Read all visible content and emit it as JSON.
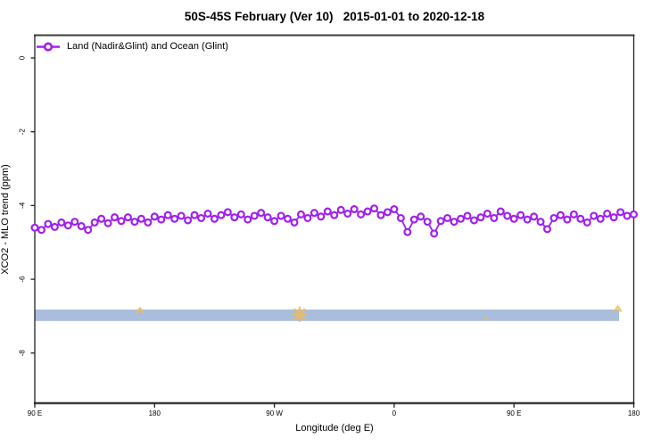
{
  "title": "50S-45S February (Ver 10)   2015-01-01 to 2020-12-18",
  "legend": {
    "label": "Land (Nadir&Glint) and Ocean (Glint)",
    "marker": "open-circle-on-line",
    "color": "#a020f0"
  },
  "axes": {
    "x": {
      "label": "Longitude (deg E)",
      "tick_values": [
        90,
        180,
        270,
        360,
        450,
        540
      ],
      "tick_labels": [
        "90 E",
        "180",
        "90 W",
        "0",
        "90 E",
        "180"
      ]
    },
    "y": {
      "label": "XCO2 - MLO trend (ppm)",
      "tick_values": [
        0,
        -2,
        -4,
        -6,
        -8
      ],
      "tick_labels": [
        "0",
        "-2",
        "-4",
        "-6",
        "-8"
      ]
    }
  },
  "colors": {
    "series": "#a020f0",
    "band": "#a8bedc",
    "flags": "#f0bb5e",
    "axis": "#333333"
  },
  "chart_data": {
    "type": "line",
    "title": "50S-45S February (Ver 10)   2015-01-01 to 2020-12-18",
    "xlabel": "Longitude (deg E)",
    "ylabel": "XCO2 - MLO trend (ppm)",
    "xlim": [
      90,
      540
    ],
    "ylim": [
      -9.35,
      0.6
    ],
    "grid": false,
    "legend_position": "top-left",
    "x": [
      90,
      95,
      100,
      105,
      110,
      115,
      120,
      125,
      130,
      135,
      140,
      145,
      150,
      155,
      160,
      165,
      170,
      175,
      180,
      185,
      190,
      195,
      200,
      205,
      210,
      215,
      220,
      225,
      230,
      235,
      240,
      245,
      250,
      255,
      260,
      265,
      270,
      275,
      280,
      285,
      290,
      295,
      300,
      305,
      310,
      315,
      320,
      325,
      330,
      335,
      340,
      345,
      350,
      355,
      360,
      365,
      370,
      375,
      380,
      385,
      390,
      395,
      400,
      405,
      410,
      415,
      420,
      425,
      430,
      435,
      440,
      445,
      450,
      455,
      460,
      465,
      470,
      475,
      480,
      485,
      490,
      495,
      500,
      505,
      510,
      515,
      520,
      525,
      530,
      535,
      540
    ],
    "series": [
      {
        "name": "Land (Nadir&Glint) and Ocean (Glint)",
        "color": "#a020f0",
        "marker": "open-circle",
        "values": [
          -4.6,
          -4.66,
          -4.5,
          -4.58,
          -4.46,
          -4.54,
          -4.44,
          -4.56,
          -4.66,
          -4.46,
          -4.36,
          -4.48,
          -4.32,
          -4.42,
          -4.32,
          -4.44,
          -4.36,
          -4.46,
          -4.3,
          -4.38,
          -4.26,
          -4.36,
          -4.28,
          -4.4,
          -4.26,
          -4.34,
          -4.22,
          -4.36,
          -4.26,
          -4.18,
          -4.32,
          -4.24,
          -4.38,
          -4.28,
          -4.2,
          -4.32,
          -4.42,
          -4.28,
          -4.36,
          -4.46,
          -4.24,
          -4.34,
          -4.2,
          -4.3,
          -4.16,
          -4.26,
          -4.12,
          -4.22,
          -4.1,
          -4.24,
          -4.16,
          -4.08,
          -4.26,
          -4.18,
          -4.1,
          -4.34,
          -4.72,
          -4.38,
          -4.3,
          -4.44,
          -4.76,
          -4.42,
          -4.34,
          -4.44,
          -4.36,
          -4.28,
          -4.4,
          -4.32,
          -4.22,
          -4.34,
          -4.16,
          -4.28,
          -4.36,
          -4.26,
          -4.38,
          -4.3,
          -4.44,
          -4.64,
          -4.34,
          -4.26,
          -4.38,
          -4.24,
          -4.36,
          -4.46,
          -4.28,
          -4.36,
          -4.22,
          -4.32,
          -4.18,
          -4.28,
          -4.24
        ]
      }
    ],
    "band": {
      "description": "horizontal shaded band",
      "x_start": 90,
      "x_end": 529,
      "value_top": -6.82,
      "value_bottom": -7.13,
      "color": "#a8bedc"
    },
    "flag_marks": [
      {
        "x": 169,
        "value": -6.85,
        "shape": "caret",
        "color": "#f0bb5e"
      },
      {
        "x": 289,
        "value": -6.95,
        "shape": "star",
        "color": "#f0bb5e"
      },
      {
        "x": 429,
        "value": -7.07,
        "shape": "dot",
        "color": "#f0bb5e"
      },
      {
        "x": 528,
        "value": -6.81,
        "shape": "caret",
        "color": "#f0bb5e"
      }
    ]
  }
}
